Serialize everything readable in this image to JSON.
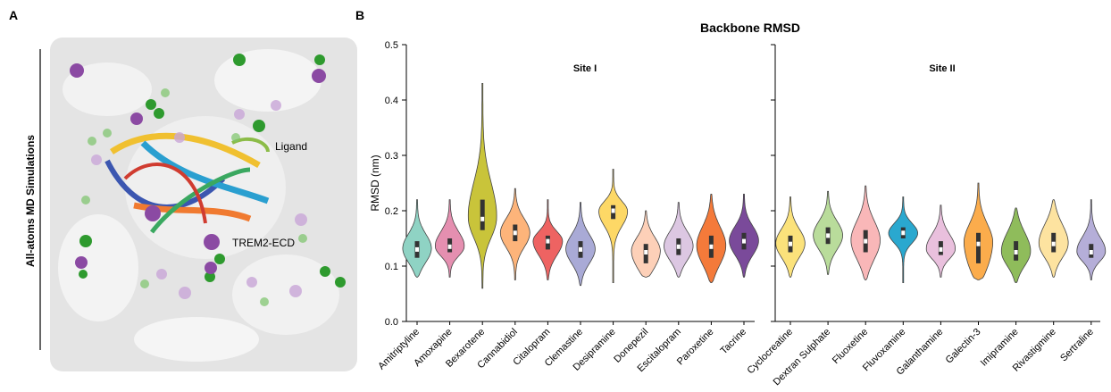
{
  "panel_a": {
    "label": "A",
    "side_label": "All-atoms MD Simulations",
    "annotations": [
      "Ligand",
      "TREM2-ECD"
    ]
  },
  "chart_data": {
    "type": "violin",
    "panel_label": "B",
    "title": "Backbone RMSD",
    "y_label": "RMSD (nm)",
    "ylim": [
      0,
      0.5
    ],
    "yticks": [
      {
        "value": 0,
        "label": "0.0"
      },
      0.1,
      0.2,
      0.3,
      0.4,
      0.5
    ],
    "panels": [
      {
        "title": "Site I",
        "categories": [
          "Amitriptyline",
          "Amoxapine",
          "Bexarotene",
          "Cannabidiol",
          "Citalopram",
          "Clemastine",
          "Desipramine",
          "Donepezil",
          "Escitalopram",
          "Paroxetine",
          "Tacrine"
        ],
        "colors": [
          "#8fd3c4",
          "#e58fb0",
          "#c9c43a",
          "#fdb47a",
          "#ee6362",
          "#a9aad6",
          "#fdd866",
          "#fdd0b8",
          "#dcc7e2",
          "#f47a3a",
          "#7a4a9a"
        ],
        "min": [
          0.08,
          0.08,
          0.06,
          0.075,
          0.075,
          0.065,
          0.07,
          0.08,
          0.08,
          0.07,
          0.08
        ],
        "q1": [
          0.115,
          0.125,
          0.165,
          0.145,
          0.13,
          0.115,
          0.185,
          0.105,
          0.12,
          0.115,
          0.13
        ],
        "median": [
          0.13,
          0.135,
          0.185,
          0.16,
          0.145,
          0.13,
          0.2,
          0.125,
          0.135,
          0.135,
          0.145
        ],
        "q3": [
          0.145,
          0.15,
          0.22,
          0.175,
          0.155,
          0.145,
          0.21,
          0.14,
          0.15,
          0.155,
          0.16
        ],
        "max": [
          0.22,
          0.22,
          0.43,
          0.24,
          0.22,
          0.215,
          0.275,
          0.2,
          0.215,
          0.23,
          0.23
        ]
      },
      {
        "title": "Site II",
        "categories": [
          "Cyclocreatine",
          "Dextran Sulphate",
          "Fluoxetine",
          "Fluvoxamine",
          "Galanthamine",
          "Galectin-3",
          "Imipramine",
          "Rivastigmine",
          "Sertraline"
        ],
        "colors": [
          "#fbe27b",
          "#b9dc9b",
          "#f9b7b8",
          "#2aa8cf",
          "#e9c0dd",
          "#fbac4c",
          "#8fbc5b",
          "#fde3a0",
          "#b5aed8"
        ],
        "min": [
          0.08,
          0.085,
          0.075,
          0.07,
          0.08,
          0.075,
          0.07,
          0.08,
          0.075
        ],
        "q1": [
          0.125,
          0.14,
          0.125,
          0.15,
          0.12,
          0.105,
          0.11,
          0.125,
          0.115
        ],
        "median": [
          0.14,
          0.155,
          0.145,
          0.16,
          0.13,
          0.14,
          0.125,
          0.14,
          0.125
        ],
        "q3": [
          0.155,
          0.17,
          0.165,
          0.17,
          0.145,
          0.16,
          0.145,
          0.16,
          0.14
        ],
        "max": [
          0.225,
          0.235,
          0.245,
          0.225,
          0.21,
          0.25,
          0.205,
          0.22,
          0.22
        ]
      }
    ]
  }
}
